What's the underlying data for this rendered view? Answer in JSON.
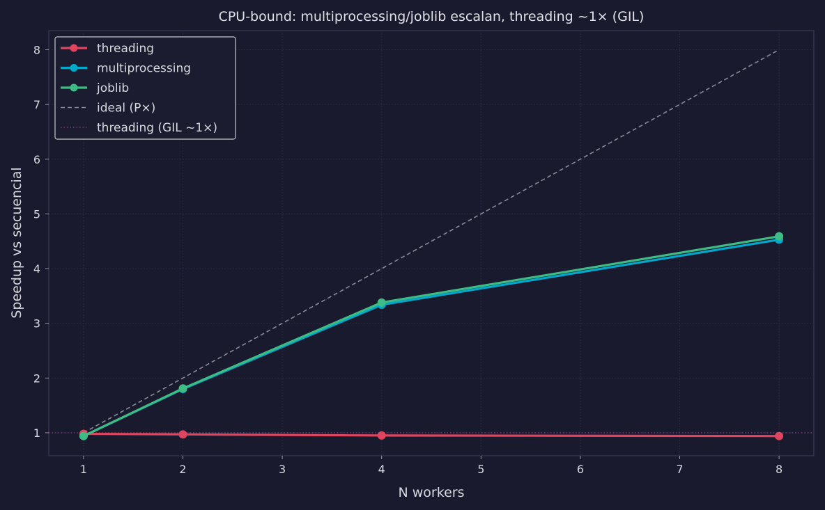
{
  "chart_data": {
    "type": "line",
    "title": "CPU-bound: multiprocessing/joblib escalan, threading ~1× (GIL)",
    "xlabel": "N workers",
    "ylabel": "Speedup vs secuencial",
    "xlim": [
      0.65,
      8.35
    ],
    "ylim": [
      0.58,
      8.35
    ],
    "xticks": [
      1,
      2,
      3,
      4,
      5,
      6,
      7,
      8
    ],
    "yticks": [
      1,
      2,
      3,
      4,
      5,
      6,
      7,
      8
    ],
    "grid": true,
    "legend_position": "top-left",
    "series": [
      {
        "name": "threading",
        "color": "#e0455f",
        "style": "solid-markers",
        "x": [
          1,
          2,
          4,
          8
        ],
        "y": [
          0.98,
          0.97,
          0.95,
          0.94
        ]
      },
      {
        "name": "multiprocessing",
        "color": "#00a8cc",
        "style": "solid-markers",
        "x": [
          1,
          2,
          4,
          8
        ],
        "y": [
          0.94,
          1.8,
          3.34,
          4.53
        ]
      },
      {
        "name": "joblib",
        "color": "#3dbd84",
        "style": "solid-markers",
        "x": [
          1,
          2,
          4,
          8
        ],
        "y": [
          0.94,
          1.81,
          3.38,
          4.59
        ]
      },
      {
        "name": "ideal (P×)",
        "color": "#8a8a96",
        "style": "dashed",
        "x": [
          1,
          2,
          4,
          8
        ],
        "y": [
          1,
          2,
          4,
          8
        ]
      }
    ],
    "reference_lines": [
      {
        "name": "threading (GIL ~1×)",
        "color": "#7a3a7a",
        "style": "dotted",
        "y": 1
      }
    ]
  }
}
